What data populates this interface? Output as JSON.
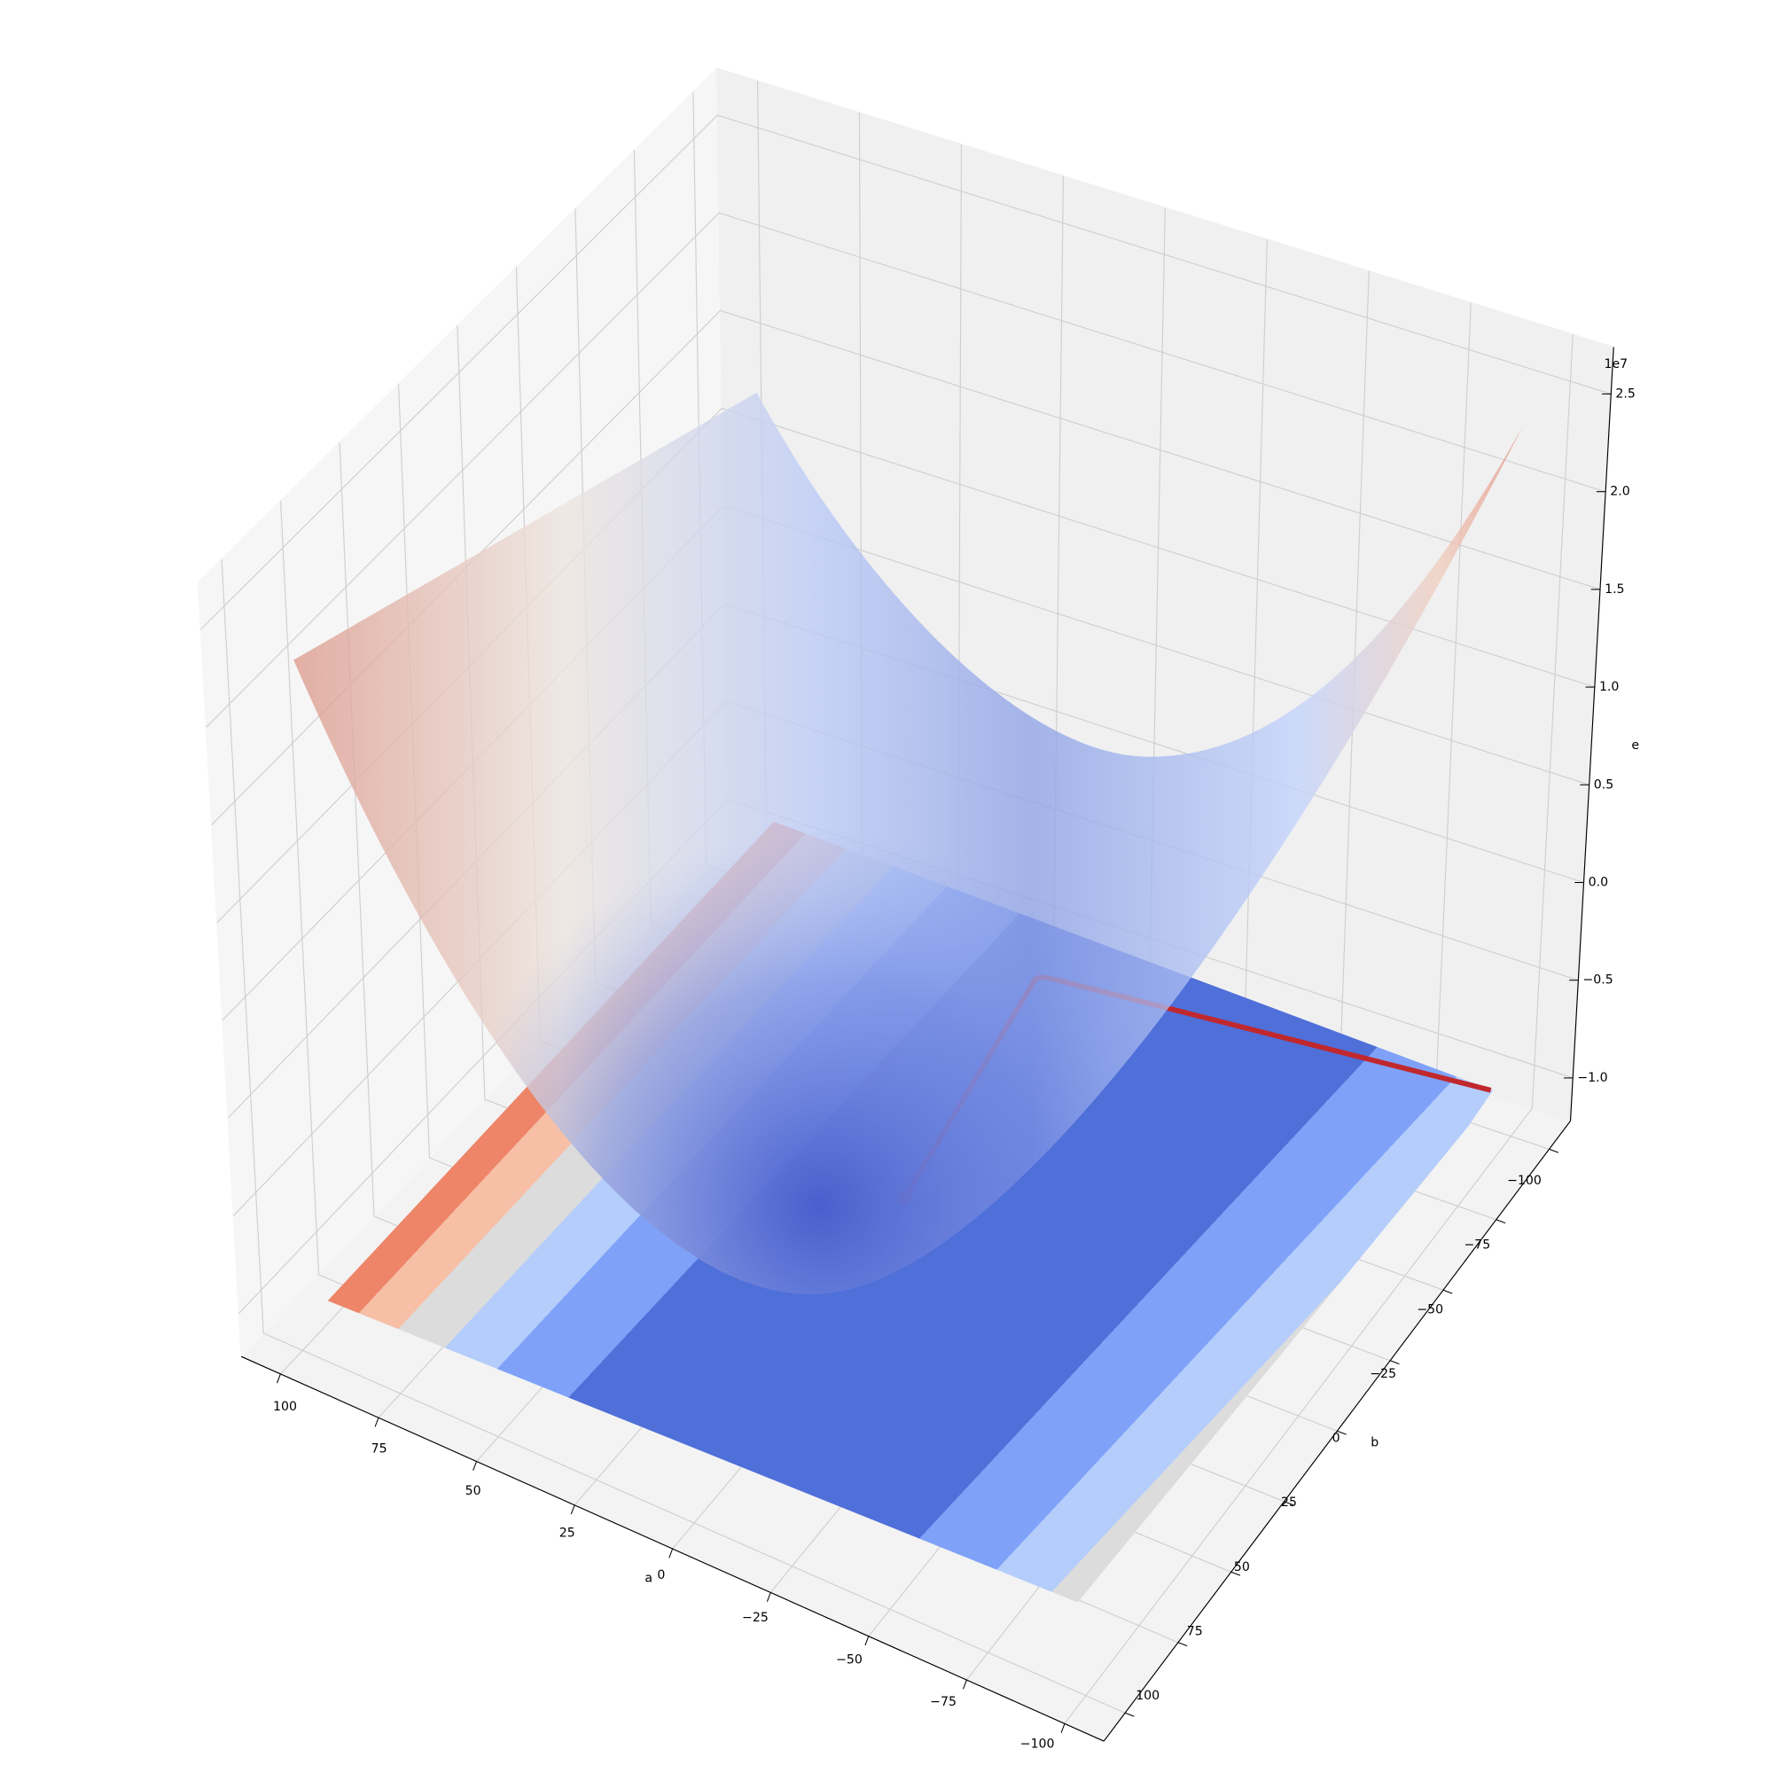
{
  "chart_data": {
    "type": "surface3d",
    "xlabel": "a",
    "ylabel": "b",
    "zlabel": "e",
    "z_offset_text": "1e7",
    "xlim": [
      -110,
      110
    ],
    "ylim": [
      -110,
      110
    ],
    "zlim": [
      -1.22,
      2.74
    ],
    "xticks": [
      {
        "value": -100,
        "label": "−100"
      },
      {
        "value": -75,
        "label": "−75"
      },
      {
        "value": -50,
        "label": "−50"
      },
      {
        "value": -25,
        "label": "−25"
      },
      0,
      25,
      50,
      75,
      100
    ],
    "yticks": [
      {
        "value": -100,
        "label": "−100"
      },
      {
        "value": -75,
        "label": "−75"
      },
      {
        "value": -50,
        "label": "−50"
      },
      {
        "value": -25,
        "label": "−25"
      },
      0,
      25,
      50,
      75,
      100
    ],
    "zticks": [
      {
        "value": -1,
        "label": "−1.0"
      },
      {
        "value": -0.5,
        "label": "−0.5"
      },
      {
        "value": 0,
        "label": "0.0"
      },
      0.5,
      {
        "value": 1,
        "label": "1.0"
      },
      1.5,
      {
        "value": 2,
        "label": "2.0"
      },
      2.5
    ],
    "grid": true
  }
}
